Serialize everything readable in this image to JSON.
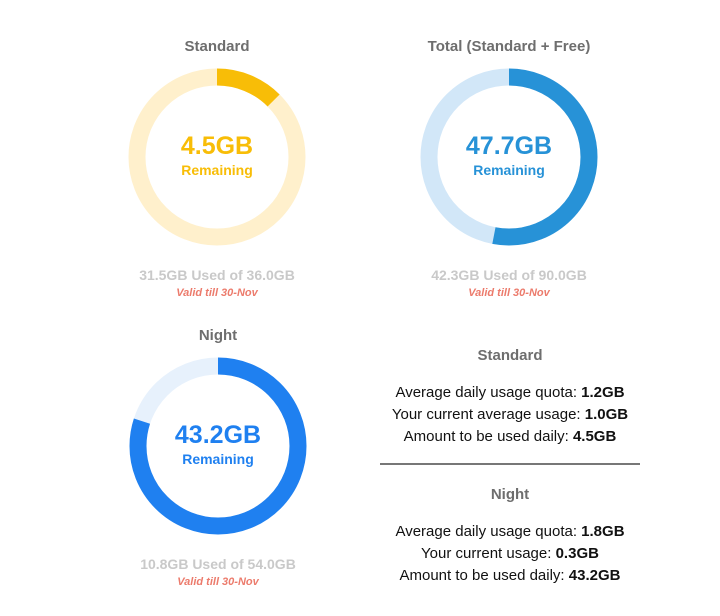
{
  "colors": {
    "standard_accent": "#f8bd07",
    "standard_track": "#fff0cc",
    "total_accent": "#2792d7",
    "total_track": "#d2e7f8",
    "night_accent": "#1f80f0",
    "night_track": "#e7f1fc",
    "used_text": "#c9c9c9",
    "valid_text": "#ec7b6c"
  },
  "cards": {
    "standard": {
      "title": "Standard",
      "remaining_value": "4.5GB",
      "remaining_label": "Remaining",
      "used_text": "31.5GB Used of 36.0GB",
      "valid_text": "Valid till 30-Nov",
      "used_gb": 31.5,
      "total_gb": 36.0,
      "remaining_gb": 4.5
    },
    "total": {
      "title": "Total (Standard + Free)",
      "remaining_value": "47.7GB",
      "remaining_label": "Remaining",
      "used_text": "42.3GB Used of 90.0GB",
      "valid_text": "Valid till 30-Nov",
      "used_gb": 42.3,
      "total_gb": 90.0,
      "remaining_gb": 47.7
    },
    "night": {
      "title": "Night",
      "remaining_value": "43.2GB",
      "remaining_label": "Remaining",
      "used_text": "10.8GB Used of 54.0GB",
      "valid_text": "Valid till 30-Nov",
      "used_gb": 10.8,
      "total_gb": 54.0,
      "remaining_gb": 43.2
    }
  },
  "stats": {
    "standard": {
      "heading": "Standard",
      "quota_label": "Average daily usage quota:",
      "quota_value": "1.2GB",
      "current_label": "Your current average usage:",
      "current_value": "1.0GB",
      "daily_label": "Amount to be used daily:",
      "daily_value": "4.5GB"
    },
    "night": {
      "heading": "Night",
      "quota_label": "Average daily usage quota:",
      "quota_value": "1.8GB",
      "current_label": "Your current usage:",
      "current_value": "0.3GB",
      "daily_label": "Amount to be used daily:",
      "daily_value": "43.2GB"
    }
  }
}
